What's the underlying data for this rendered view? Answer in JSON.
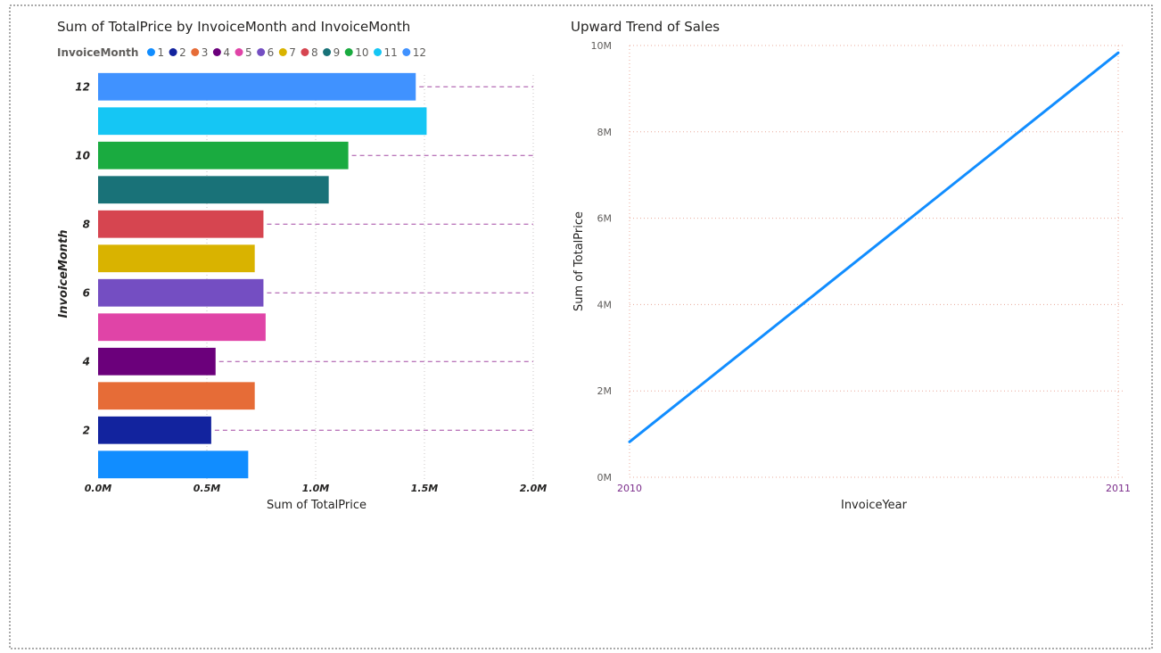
{
  "chart_data": [
    {
      "type": "bar",
      "orientation": "horizontal",
      "title": "Sum of TotalPrice by InvoiceMonth and InvoiceMonth",
      "legend": {
        "title": "InvoiceMonth",
        "placement": "top-left",
        "items": [
          {
            "name": "1",
            "color": "#118DFF"
          },
          {
            "name": "2",
            "color": "#12239E"
          },
          {
            "name": "3",
            "color": "#E66C37"
          },
          {
            "name": "4",
            "color": "#6B007B"
          },
          {
            "name": "5",
            "color": "#E044A7"
          },
          {
            "name": "6",
            "color": "#744EC2"
          },
          {
            "name": "7",
            "color": "#D9B300"
          },
          {
            "name": "8",
            "color": "#D64550"
          },
          {
            "name": "9",
            "color": "#197278"
          },
          {
            "name": "10",
            "color": "#1AAB40"
          },
          {
            "name": "11",
            "color": "#15C6F4"
          },
          {
            "name": "12",
            "color": "#4092FF"
          }
        ]
      },
      "categories": [
        "1",
        "2",
        "3",
        "4",
        "5",
        "6",
        "7",
        "8",
        "9",
        "10",
        "11",
        "12"
      ],
      "values": [
        0.69,
        0.52,
        0.72,
        0.54,
        0.77,
        0.76,
        0.72,
        0.76,
        1.06,
        1.15,
        1.51,
        1.46
      ],
      "value_unit": "M",
      "category_tick_labels": [
        "2",
        "4",
        "6",
        "8",
        "10",
        "12"
      ],
      "xlabel": "Sum of TotalPrice",
      "ylabel": "InvoiceMonth",
      "xlim": [
        0,
        2.0
      ],
      "xticks": [
        "0.0M",
        "0.5M",
        "1.0M",
        "1.5M",
        "2.0M"
      ],
      "grid": "vertical dotted",
      "reference_lines": "dashed purple at labelled categories"
    },
    {
      "type": "line",
      "title": "Upward Trend of Sales",
      "x": [
        "2010",
        "2011"
      ],
      "series": [
        {
          "values": [
            0.82,
            9.83
          ],
          "color": "#118DFF"
        }
      ],
      "value_unit": "M",
      "xlabel": "InvoiceYear",
      "ylabel": "Sum of TotalPrice",
      "ylim": [
        0,
        10
      ],
      "yticks": [
        "0M",
        "2M",
        "4M",
        "6M",
        "8M",
        "10M"
      ],
      "grid": "dotted"
    }
  ]
}
